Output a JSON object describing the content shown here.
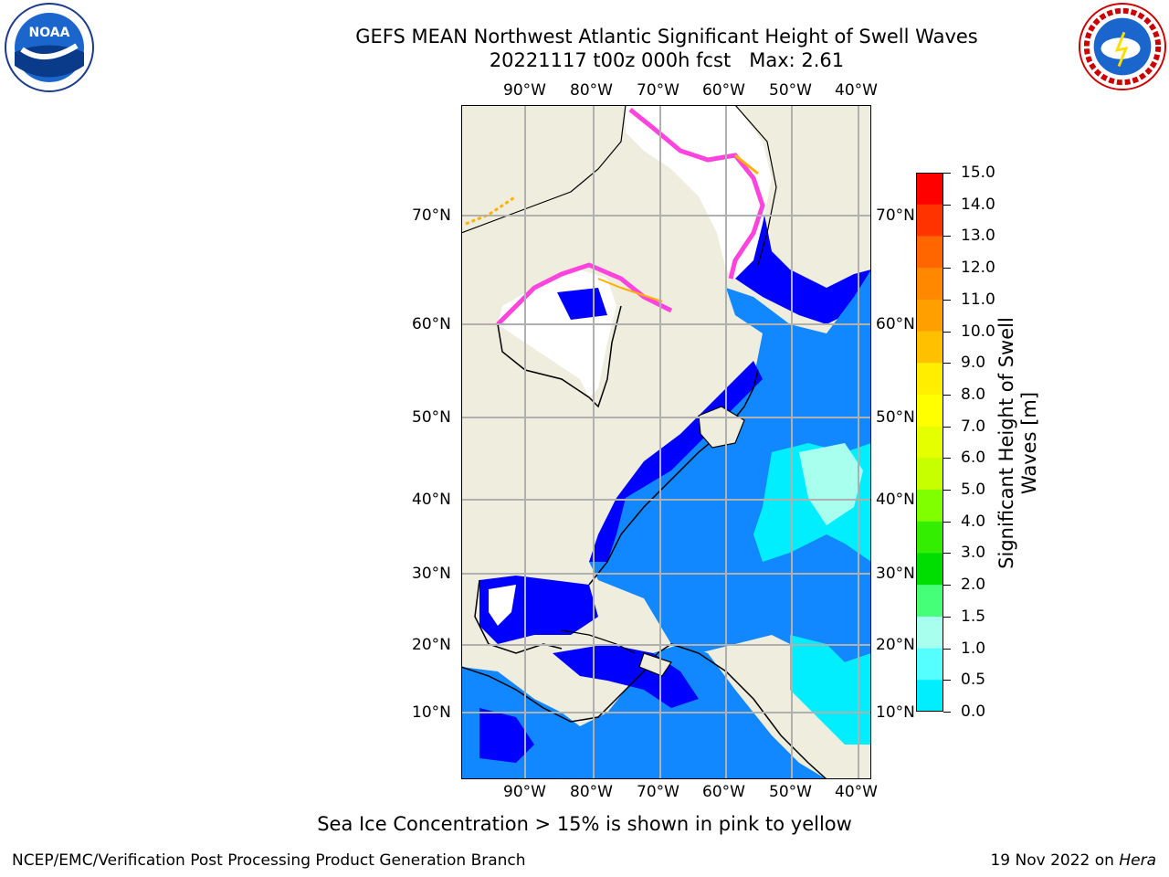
{
  "title_line1": "GEFS MEAN Northwest Atlantic Significant Height of Swell Waves",
  "title_line2": "20221117 t00z 000h fcst   Max: 2.61",
  "logos": {
    "left": "noaa-logo",
    "right": "national-weather-service-logo",
    "left_text": "NOAA",
    "right_text": "NATIONAL WEATHER SERVICE"
  },
  "lon_labels": [
    "90°W",
    "80°W",
    "70°W",
    "60°W",
    "50°W",
    "40°W"
  ],
  "lat_labels": [
    "70°N",
    "60°N",
    "50°N",
    "40°N",
    "30°N",
    "20°N",
    "10°N"
  ],
  "colorbar": {
    "title_line1": "Significant Height of Swell",
    "title_line2": "Waves [m]",
    "ticks": [
      "15.0",
      "14.0",
      "13.0",
      "12.0",
      "11.0",
      "10.0",
      "9.0",
      "8.0",
      "7.0",
      "6.0",
      "5.0",
      "4.0",
      "3.0",
      "2.0",
      "1.5",
      "1.0",
      "0.5",
      "0.0"
    ],
    "colors_top_to_bottom": [
      "#ff0000",
      "#ff3300",
      "#ff6600",
      "#ff8800",
      "#ffa000",
      "#ffc000",
      "#ffee00",
      "#ffff00",
      "#e6ff00",
      "#c8ff00",
      "#80ff00",
      "#33ee00",
      "#00dd00",
      "#44ff77",
      "#a8ffee",
      "#55ffff",
      "#00eeff",
      "#1188ff",
      "#0000ff"
    ]
  },
  "colors": {
    "land": "#efedde",
    "ocean_low": "#0000ff",
    "ocean_mid": "#1188ff",
    "ocean_high": "#00eeff",
    "ice": "#ff44dd"
  },
  "note": "Sea Ice Concentration > 15% is shown in pink to yellow",
  "footer_left": "NCEP/EMC/Verification Post Processing Product Generation Branch",
  "footer_right_date": "19 Nov 2022 on ",
  "footer_right_host": "Hera"
}
